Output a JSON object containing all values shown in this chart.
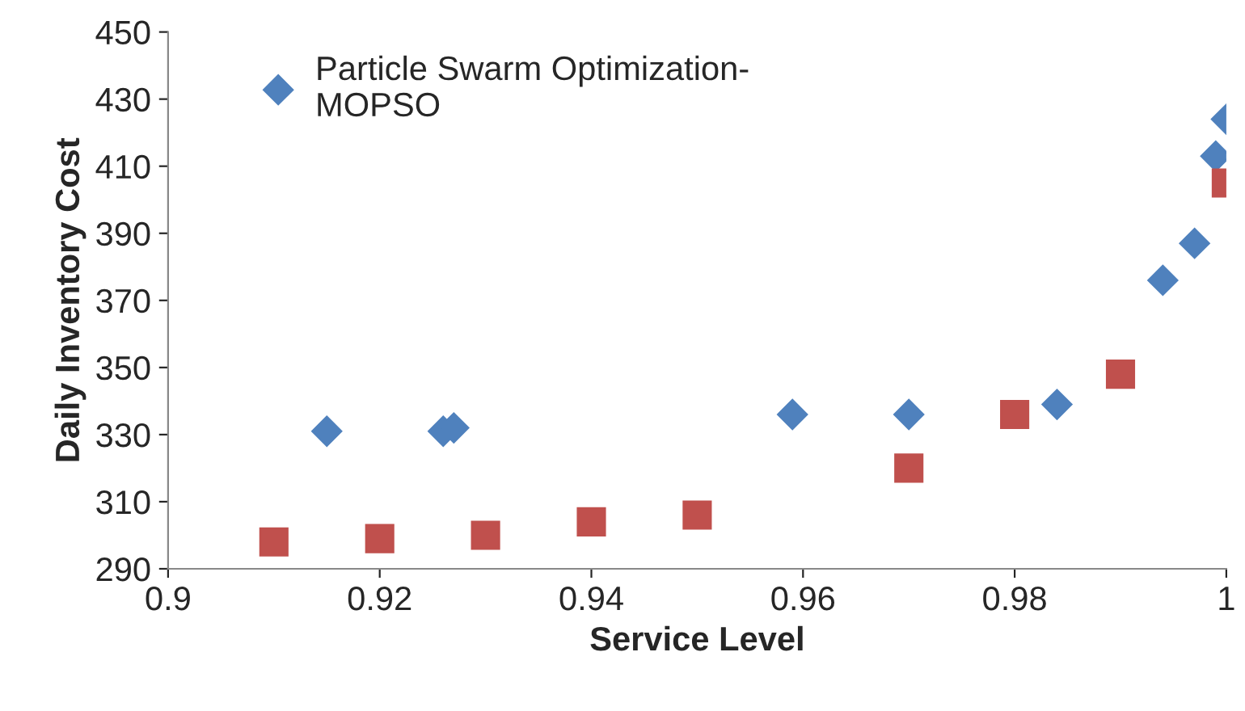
{
  "chart_data": {
    "type": "scatter",
    "xlabel": "Service Level",
    "ylabel": "Daily Inventory Cost",
    "series": [
      {
        "name": "Particle Swarm Optimization-\nMOPSO",
        "color": "#4f81bd",
        "marker": "diamond",
        "x": [
          0.915,
          0.926,
          0.927,
          0.959,
          0.97,
          0.984,
          0.994,
          0.997,
          0.999,
          1.0
        ],
        "values": [
          331,
          331,
          332,
          336,
          336,
          339,
          376,
          387,
          413,
          424
        ]
      },
      {
        "color": "#c0504d",
        "marker": "square",
        "x": [
          0.91,
          0.92,
          0.93,
          0.94,
          0.95,
          0.97,
          0.98,
          0.99,
          1.0
        ],
        "values": [
          298,
          299,
          300,
          304,
          306,
          320,
          336,
          348,
          405
        ]
      }
    ],
    "xlim": [
      0.9,
      1.0
    ],
    "xticks": [
      {
        "value": 0.9,
        "label": "0.9"
      },
      0.92,
      0.94,
      0.96,
      0.98,
      {
        "value": 1.0,
        "label": "1"
      }
    ],
    "ylim": [
      290,
      450
    ],
    "yticks": [
      290,
      310,
      330,
      350,
      370,
      390,
      410,
      430,
      450
    ],
    "grid": false,
    "legend": "top left"
  }
}
